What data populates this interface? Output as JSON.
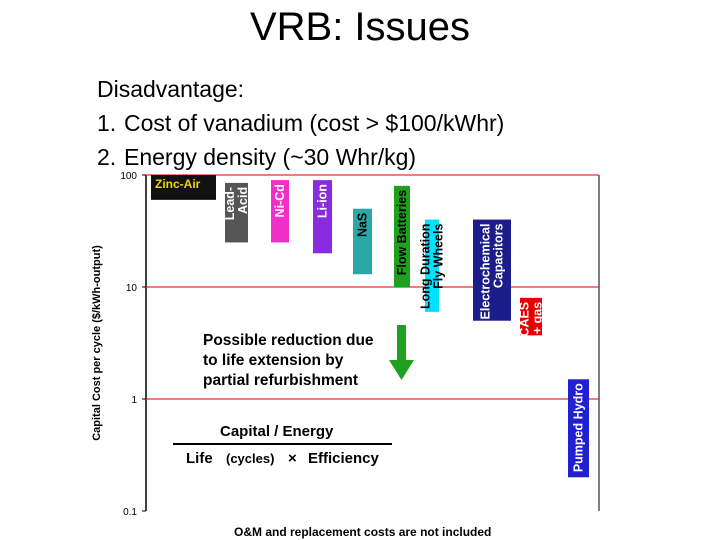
{
  "slide": {
    "title": "VRB: Issues",
    "intro": "Disadvantage:",
    "items": [
      {
        "num": "1.",
        "text": "Cost of vanadium (cost > $100/kWhr)"
      },
      {
        "num": "2.",
        "text": "Energy density (~30 Whr/kg)"
      }
    ]
  },
  "chart_data": {
    "type": "bar",
    "ylabel": "Capital Cost per cycle ($/kWh-output)",
    "yscale": "log",
    "ylim": [
      0.1,
      100
    ],
    "yticks": [
      {
        "value": 100,
        "label": "100"
      },
      {
        "value": 10,
        "label": "10"
      },
      {
        "value": 1,
        "label": "1"
      },
      {
        "value": 0.1,
        "label": "0.1"
      }
    ],
    "gridlines": [
      100,
      10,
      1
    ],
    "grid_color": "#e03030",
    "footer": "O&M and replacement costs are not included",
    "technologies": [
      {
        "label": "Zinc-Air",
        "color": "#111111",
        "text_color": "#f2d400",
        "top": 100,
        "bottom": 60,
        "orientation": "horizontal"
      },
      {
        "label": "Lead-Acid",
        "color": "#555555",
        "text_color": "#ffffff",
        "top": 85,
        "bottom": 25,
        "orientation": "vertical"
      },
      {
        "label": "Ni-Cd",
        "color": "#ef2fc8",
        "text_color": "#ffffff",
        "top": 90,
        "bottom": 25,
        "orientation": "vertical"
      },
      {
        "label": "Li-ion",
        "color": "#8a2be2",
        "text_color": "#ffffff",
        "top": 90,
        "bottom": 20,
        "orientation": "vertical"
      },
      {
        "label": "NaS",
        "color": "#2aa8a8",
        "text_color": "#000000",
        "top": 50,
        "bottom": 13,
        "orientation": "vertical"
      },
      {
        "label": "Flow Batteries",
        "color": "#1fa01f",
        "text_color": "#000000",
        "top": 80,
        "bottom": 10,
        "orientation": "vertical"
      },
      {
        "label": "Long Duration Fly Wheels",
        "color": "#00e0ff",
        "text_color": "#000000",
        "top": 40,
        "bottom": 6,
        "orientation": "vertical"
      },
      {
        "label": "Electrochemical Capacitors",
        "color": "#1c1c8a",
        "text_color": "#ffffff",
        "top": 40,
        "bottom": 5,
        "orientation": "vertical"
      },
      {
        "label": "CAES + gas",
        "color": "#e60000",
        "text_color": "#ffffff",
        "top": 8,
        "bottom": 3.7,
        "orientation": "vertical"
      },
      {
        "label": "Pumped Hydro",
        "color": "#2020d0",
        "text_color": "#ffffff",
        "top": 1.5,
        "bottom": 0.2,
        "orientation": "vertical"
      }
    ],
    "annotations": {
      "reduction_note": [
        "Possible reduction due",
        "to life extension by",
        "partial refurbishment"
      ],
      "formula": {
        "numerator": "Capital / Energy",
        "denominator_life": "Life",
        "denominator_cycles": "(cycles)",
        "denominator_times": "×",
        "denominator_eff": "Efficiency"
      }
    }
  }
}
